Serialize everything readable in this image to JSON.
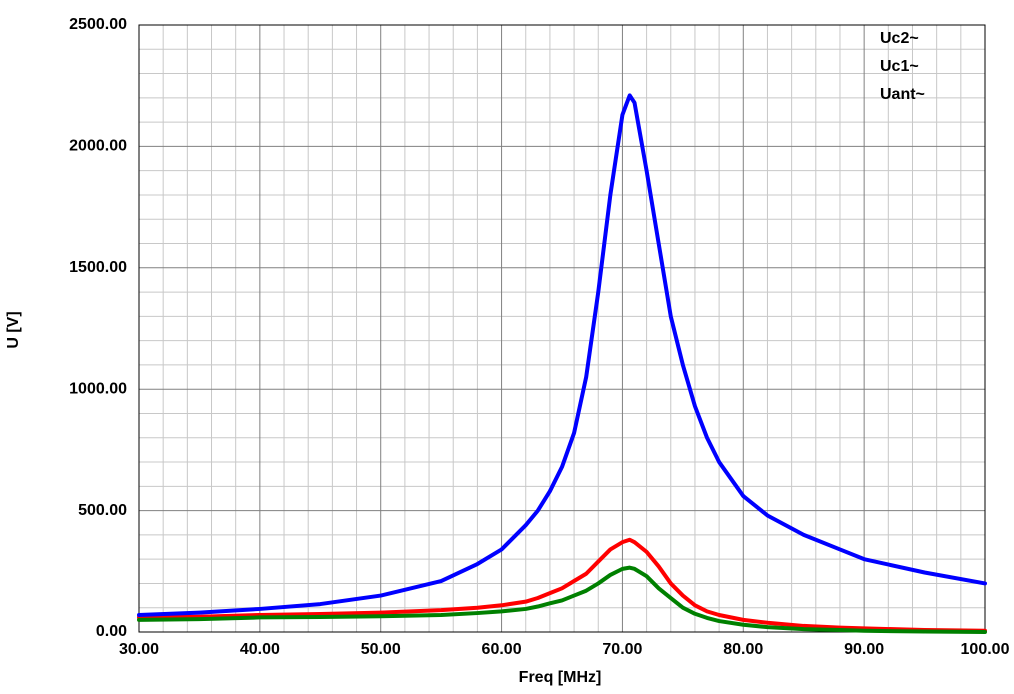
{
  "chart_data": {
    "type": "line",
    "xlabel": "Freq [MHz]",
    "ylabel": "U [V]",
    "x": [
      30,
      35,
      40,
      45,
      50,
      55,
      58,
      60,
      62,
      63,
      64,
      65,
      66,
      67,
      68,
      69,
      70,
      70.6,
      71,
      72,
      73,
      74,
      75,
      76,
      77,
      78,
      80,
      82,
      85,
      88,
      90,
      95,
      100
    ],
    "series": [
      {
        "name": "Uc2~",
        "color": "#ff0000",
        "values": [
          60,
          63,
          70,
          74,
          80,
          90,
          100,
          110,
          125,
          140,
          160,
          180,
          210,
          240,
          290,
          340,
          370,
          380,
          370,
          330,
          270,
          200,
          150,
          110,
          85,
          70,
          50,
          38,
          25,
          18,
          15,
          8,
          5
        ]
      },
      {
        "name": "Uc1~",
        "color": "#0000ff",
        "values": [
          70,
          80,
          95,
          115,
          150,
          210,
          280,
          340,
          440,
          500,
          580,
          680,
          820,
          1050,
          1400,
          1800,
          2130,
          2210,
          2180,
          1900,
          1600,
          1300,
          1100,
          930,
          800,
          700,
          560,
          480,
          400,
          340,
          300,
          245,
          200
        ]
      },
      {
        "name": "Uant~",
        "color": "#008000",
        "values": [
          50,
          53,
          60,
          62,
          65,
          70,
          78,
          85,
          95,
          105,
          118,
          130,
          150,
          170,
          200,
          235,
          260,
          265,
          260,
          230,
          180,
          140,
          100,
          75,
          58,
          45,
          30,
          20,
          12,
          8,
          5,
          2,
          0
        ]
      }
    ],
    "xlim": [
      30,
      100
    ],
    "ylim": [
      0,
      2500
    ],
    "xticks": [
      {
        "value": 30,
        "label": "30.00"
      },
      {
        "value": 40,
        "label": "40.00"
      },
      {
        "value": 50,
        "label": "50.00"
      },
      {
        "value": 60,
        "label": "60.00"
      },
      {
        "value": 70,
        "label": "70.00"
      },
      {
        "value": 80,
        "label": "80.00"
      },
      {
        "value": 90,
        "label": "90.00"
      },
      {
        "value": 100,
        "label": "100.00"
      }
    ],
    "yticks": [
      {
        "value": 0,
        "label": "0.00"
      },
      {
        "value": 500,
        "label": "500.00"
      },
      {
        "value": 1000,
        "label": "1000.00"
      },
      {
        "value": 1500,
        "label": "1500.00"
      },
      {
        "value": 2000,
        "label": "2000.00"
      },
      {
        "value": 2500,
        "label": "2500.00"
      }
    ],
    "grid": true,
    "legend": "top-right"
  }
}
